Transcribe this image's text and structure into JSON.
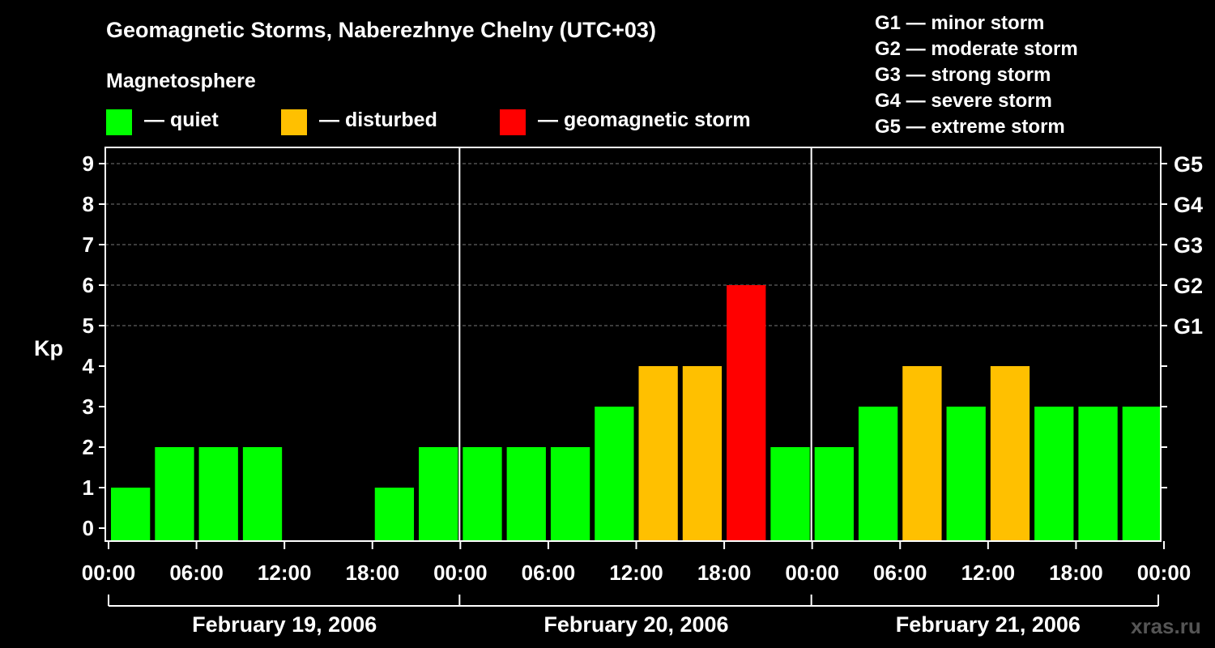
{
  "title": "Geomagnetic Storms, Naberezhnye Chelny (UTC+03)",
  "subtitle": "Magnetosphere",
  "legend": [
    {
      "label": "— quiet",
      "color": "#00ff00"
    },
    {
      "label": "— disturbed",
      "color": "#ffc000"
    },
    {
      "label": "— geomagnetic storm",
      "color": "#ff0000"
    }
  ],
  "g_scale": [
    "G1 — minor storm",
    "G2 — moderate storm",
    "G3 — strong storm",
    "G4 — severe storm",
    "G5 — extreme storm"
  ],
  "watermark": "xras.ru",
  "chart_data": {
    "type": "bar",
    "title": "Geomagnetic Storms, Naberezhnye Chelny (UTC+03)",
    "ylabel": "Kp",
    "ylim": [
      0,
      9
    ],
    "yticks": [
      "0",
      "1",
      "2",
      "3",
      "4",
      "5",
      "6",
      "7",
      "8",
      "9"
    ],
    "right_axis": [
      {
        "kp": 5,
        "label": "G1"
      },
      {
        "kp": 6,
        "label": "G2"
      },
      {
        "kp": 7,
        "label": "G3"
      },
      {
        "kp": 8,
        "label": "G4"
      },
      {
        "kp": 9,
        "label": "G5"
      }
    ],
    "xtick_labels": [
      "00:00",
      "06:00",
      "12:00",
      "18:00",
      "00:00",
      "06:00",
      "12:00",
      "18:00",
      "00:00",
      "06:00",
      "12:00",
      "18:00",
      "00:00"
    ],
    "days": [
      "February 19, 2006",
      "February 20, 2006",
      "February 21, 2006"
    ],
    "interval_hours": 3,
    "values": [
      1,
      2,
      2,
      2,
      0,
      0,
      1,
      2,
      2,
      2,
      2,
      3,
      4,
      4,
      6,
      2,
      2,
      3,
      4,
      3,
      4,
      3,
      3,
      3
    ],
    "status": [
      "quiet",
      "quiet",
      "quiet",
      "quiet",
      "quiet",
      "quiet",
      "quiet",
      "quiet",
      "quiet",
      "quiet",
      "quiet",
      "quiet",
      "disturbed",
      "disturbed",
      "storm",
      "quiet",
      "quiet",
      "quiet",
      "disturbed",
      "quiet",
      "disturbed",
      "quiet",
      "quiet",
      "quiet"
    ],
    "colors": {
      "quiet": "#00ff00",
      "disturbed": "#ffc000",
      "storm": "#ff0000"
    },
    "gridlines": "dashed at Kp 5-9"
  }
}
